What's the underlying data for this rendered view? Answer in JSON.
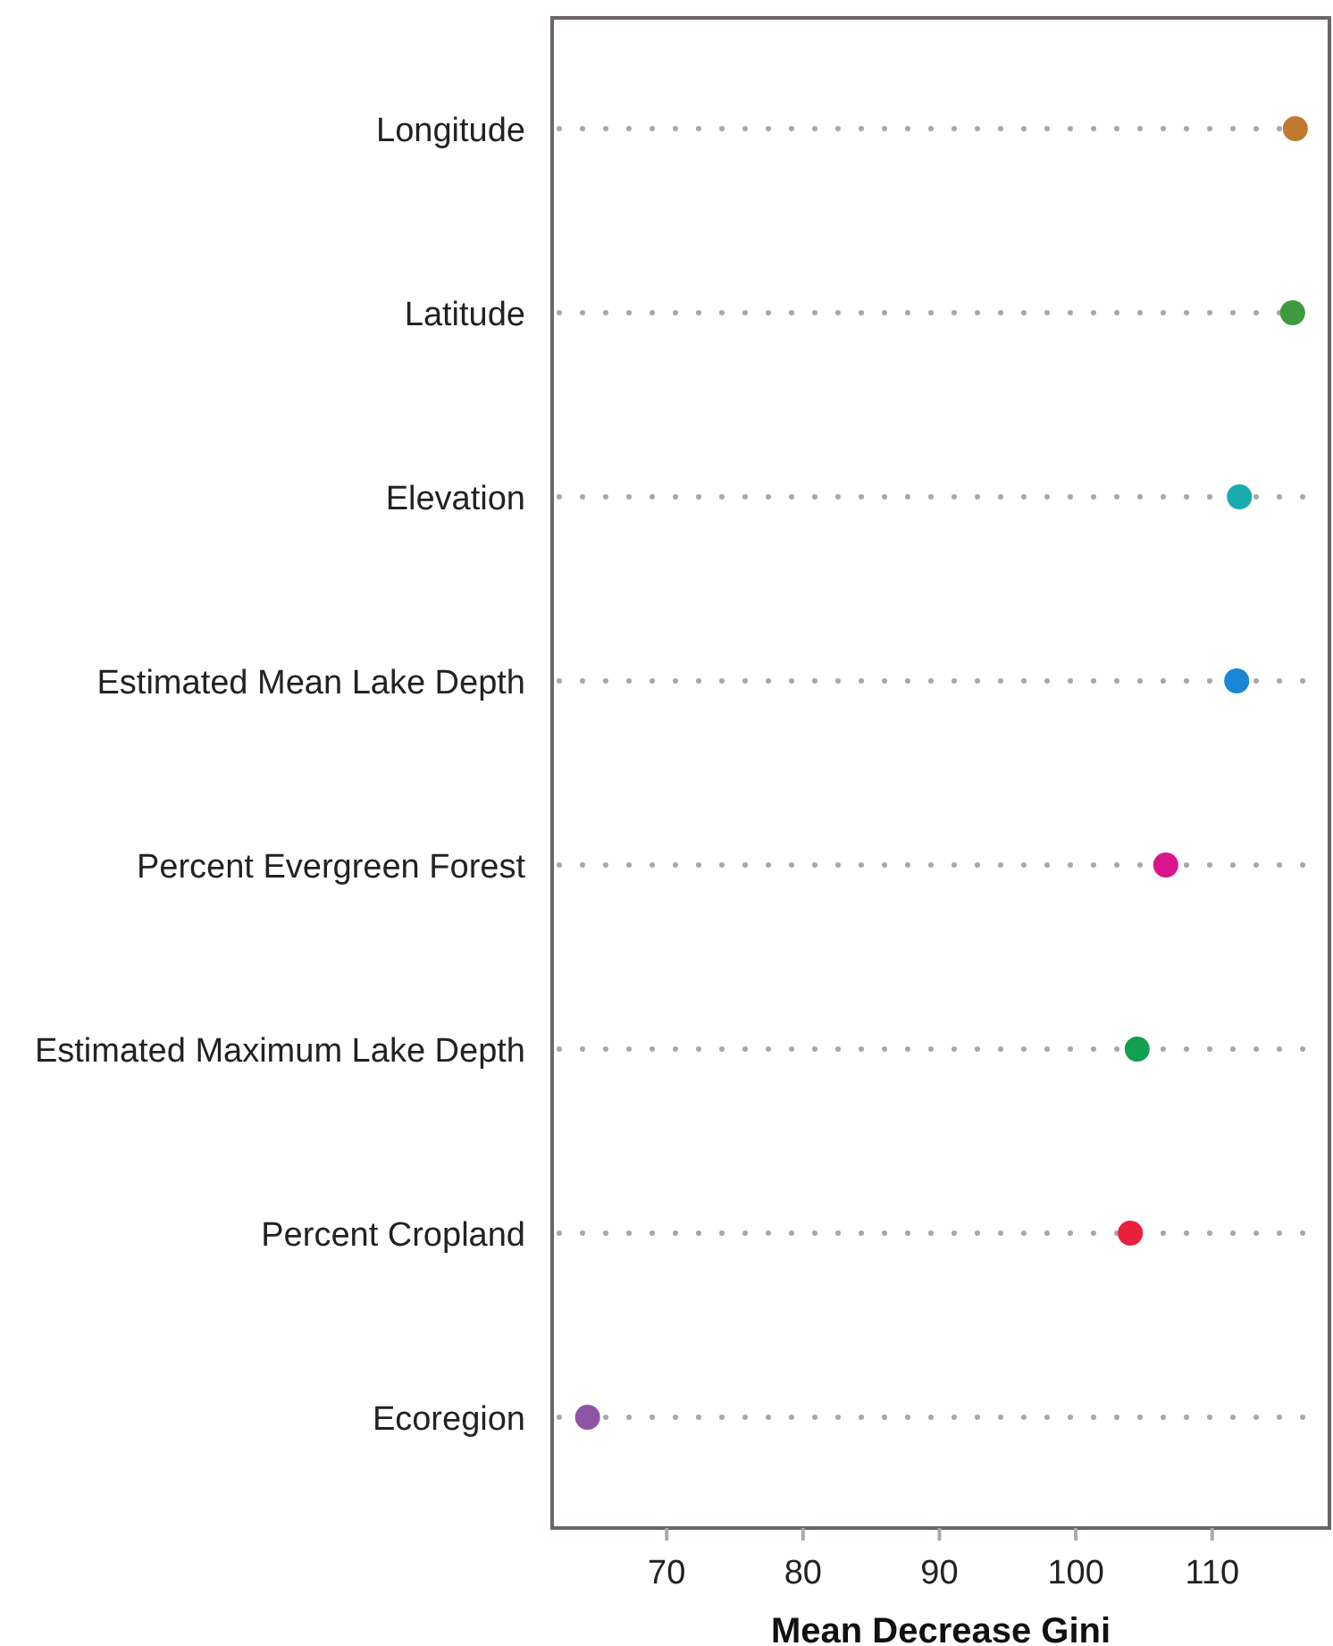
{
  "chart_data": {
    "type": "scatter",
    "orientation": "horizontal",
    "xlabel": "Mean Decrease Gini",
    "categories": [
      "Longitude",
      "Latitude",
      "Elevation",
      "Estimated Mean Lake Depth",
      "Percent Evergreen Forest",
      "Estimated Maximum Lake Depth",
      "Percent Cropland",
      "Ecoregion"
    ],
    "values": [
      116.1,
      115.9,
      112.0,
      111.8,
      106.6,
      104.5,
      104.0,
      64.2
    ],
    "colors": [
      "#c07a30",
      "#3f9a3f",
      "#1aacac",
      "#1a86d6",
      "#d9148e",
      "#10a050",
      "#e8203c",
      "#8e55a5"
    ],
    "xlim": [
      61.6,
      118.6
    ],
    "xticks": [
      70,
      80,
      90,
      100,
      110
    ],
    "grid": "y",
    "marker": "circle"
  }
}
